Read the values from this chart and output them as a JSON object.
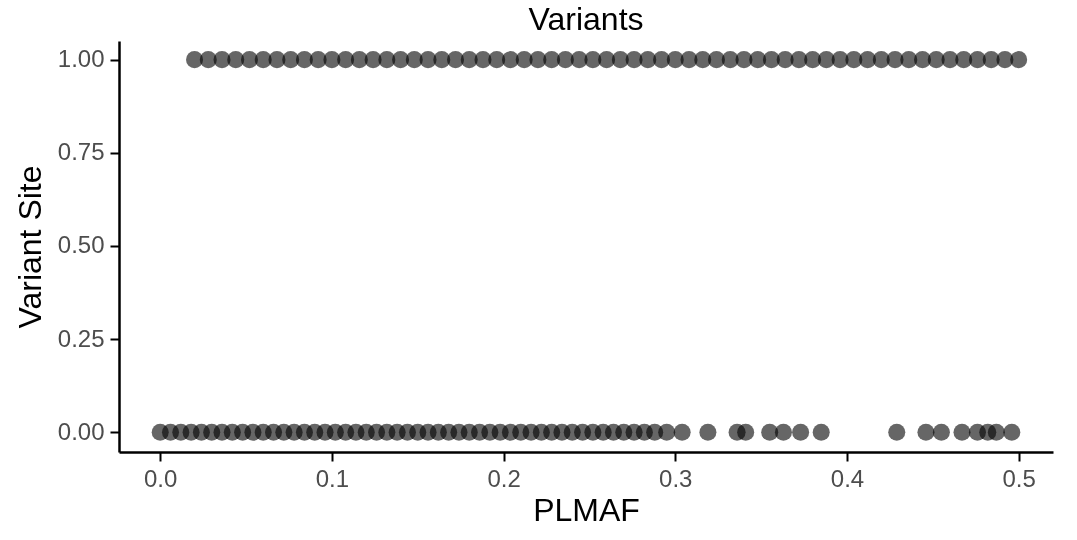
{
  "chart_data": {
    "type": "scatter",
    "title": "Variants",
    "xlabel": "PLMAF",
    "ylabel": "Variant Site",
    "xlim": [
      -0.024,
      0.52
    ],
    "ylim": [
      -0.053,
      1.05
    ],
    "xticks": [
      {
        "value": 0,
        "label": "0.0"
      },
      {
        "value": 0.1,
        "label": "0.1"
      },
      {
        "value": 0.2,
        "label": "0.2"
      },
      {
        "value": 0.3,
        "label": "0.3"
      },
      {
        "value": 0.4,
        "label": "0.4"
      },
      {
        "value": 0.5,
        "label": "0.5"
      }
    ],
    "yticks": [
      {
        "value": 0,
        "label": "0.00"
      },
      {
        "value": 0.25,
        "label": "0.25"
      },
      {
        "value": 0.5,
        "label": "0.50"
      },
      {
        "value": 0.75,
        "label": "0.75"
      },
      {
        "value": 1,
        "label": "1.00"
      }
    ],
    "grid": false,
    "legend": false,
    "marker": "circle",
    "series": [
      {
        "color": "#000000",
        "x": [
          0.02,
          0.028,
          0.036,
          0.044,
          0.052,
          0.06,
          0.068,
          0.076,
          0.084,
          0.092,
          0.1,
          0.108,
          0.116,
          0.124,
          0.132,
          0.14,
          0.148,
          0.156,
          0.164,
          0.172,
          0.18,
          0.188,
          0.196,
          0.204,
          0.212,
          0.22,
          0.228,
          0.236,
          0.244,
          0.252,
          0.26,
          0.268,
          0.276,
          0.284,
          0.292,
          0.3,
          0.308,
          0.316,
          0.324,
          0.332,
          0.34,
          0.348,
          0.356,
          0.364,
          0.372,
          0.38,
          0.388,
          0.396,
          0.404,
          0.412,
          0.42,
          0.428,
          0.436,
          0.444,
          0.452,
          0.46,
          0.468,
          0.476,
          0.484,
          0.492,
          0.5
        ],
        "values": [
          1,
          1,
          1,
          1,
          1,
          1,
          1,
          1,
          1,
          1,
          1,
          1,
          1,
          1,
          1,
          1,
          1,
          1,
          1,
          1,
          1,
          1,
          1,
          1,
          1,
          1,
          1,
          1,
          1,
          1,
          1,
          1,
          1,
          1,
          1,
          1,
          1,
          1,
          1,
          1,
          1,
          1,
          1,
          1,
          1,
          1,
          1,
          1,
          1,
          1,
          1,
          1,
          1,
          1,
          1,
          1,
          1,
          1,
          1,
          1,
          1
        ]
      },
      {
        "color": "#000000",
        "x": [
          0,
          0.006,
          0.012,
          0.018,
          0.024,
          0.03,
          0.036,
          0.042,
          0.048,
          0.054,
          0.06,
          0.066,
          0.072,
          0.078,
          0.084,
          0.09,
          0.096,
          0.102,
          0.108,
          0.114,
          0.12,
          0.126,
          0.132,
          0.138,
          0.144,
          0.15,
          0.156,
          0.162,
          0.168,
          0.174,
          0.18,
          0.186,
          0.192,
          0.198,
          0.204,
          0.21,
          0.216,
          0.222,
          0.228,
          0.234,
          0.24,
          0.246,
          0.252,
          0.258,
          0.264,
          0.27,
          0.276,
          0.282,
          0.288,
          0.295,
          0.304,
          0.319,
          0.336,
          0.341,
          0.355,
          0.363,
          0.373,
          0.385,
          0.429,
          0.446,
          0.455,
          0.467,
          0.476,
          0.482,
          0.487,
          0.496
        ],
        "values": [
          0,
          0,
          0,
          0,
          0,
          0,
          0,
          0,
          0,
          0,
          0,
          0,
          0,
          0,
          0,
          0,
          0,
          0,
          0,
          0,
          0,
          0,
          0,
          0,
          0,
          0,
          0,
          0,
          0,
          0,
          0,
          0,
          0,
          0,
          0,
          0,
          0,
          0,
          0,
          0,
          0,
          0,
          0,
          0,
          0,
          0,
          0,
          0,
          0,
          0,
          0,
          0,
          0,
          0,
          0,
          0,
          0,
          0,
          0,
          0,
          0,
          0,
          0,
          0,
          0,
          0
        ]
      }
    ]
  }
}
